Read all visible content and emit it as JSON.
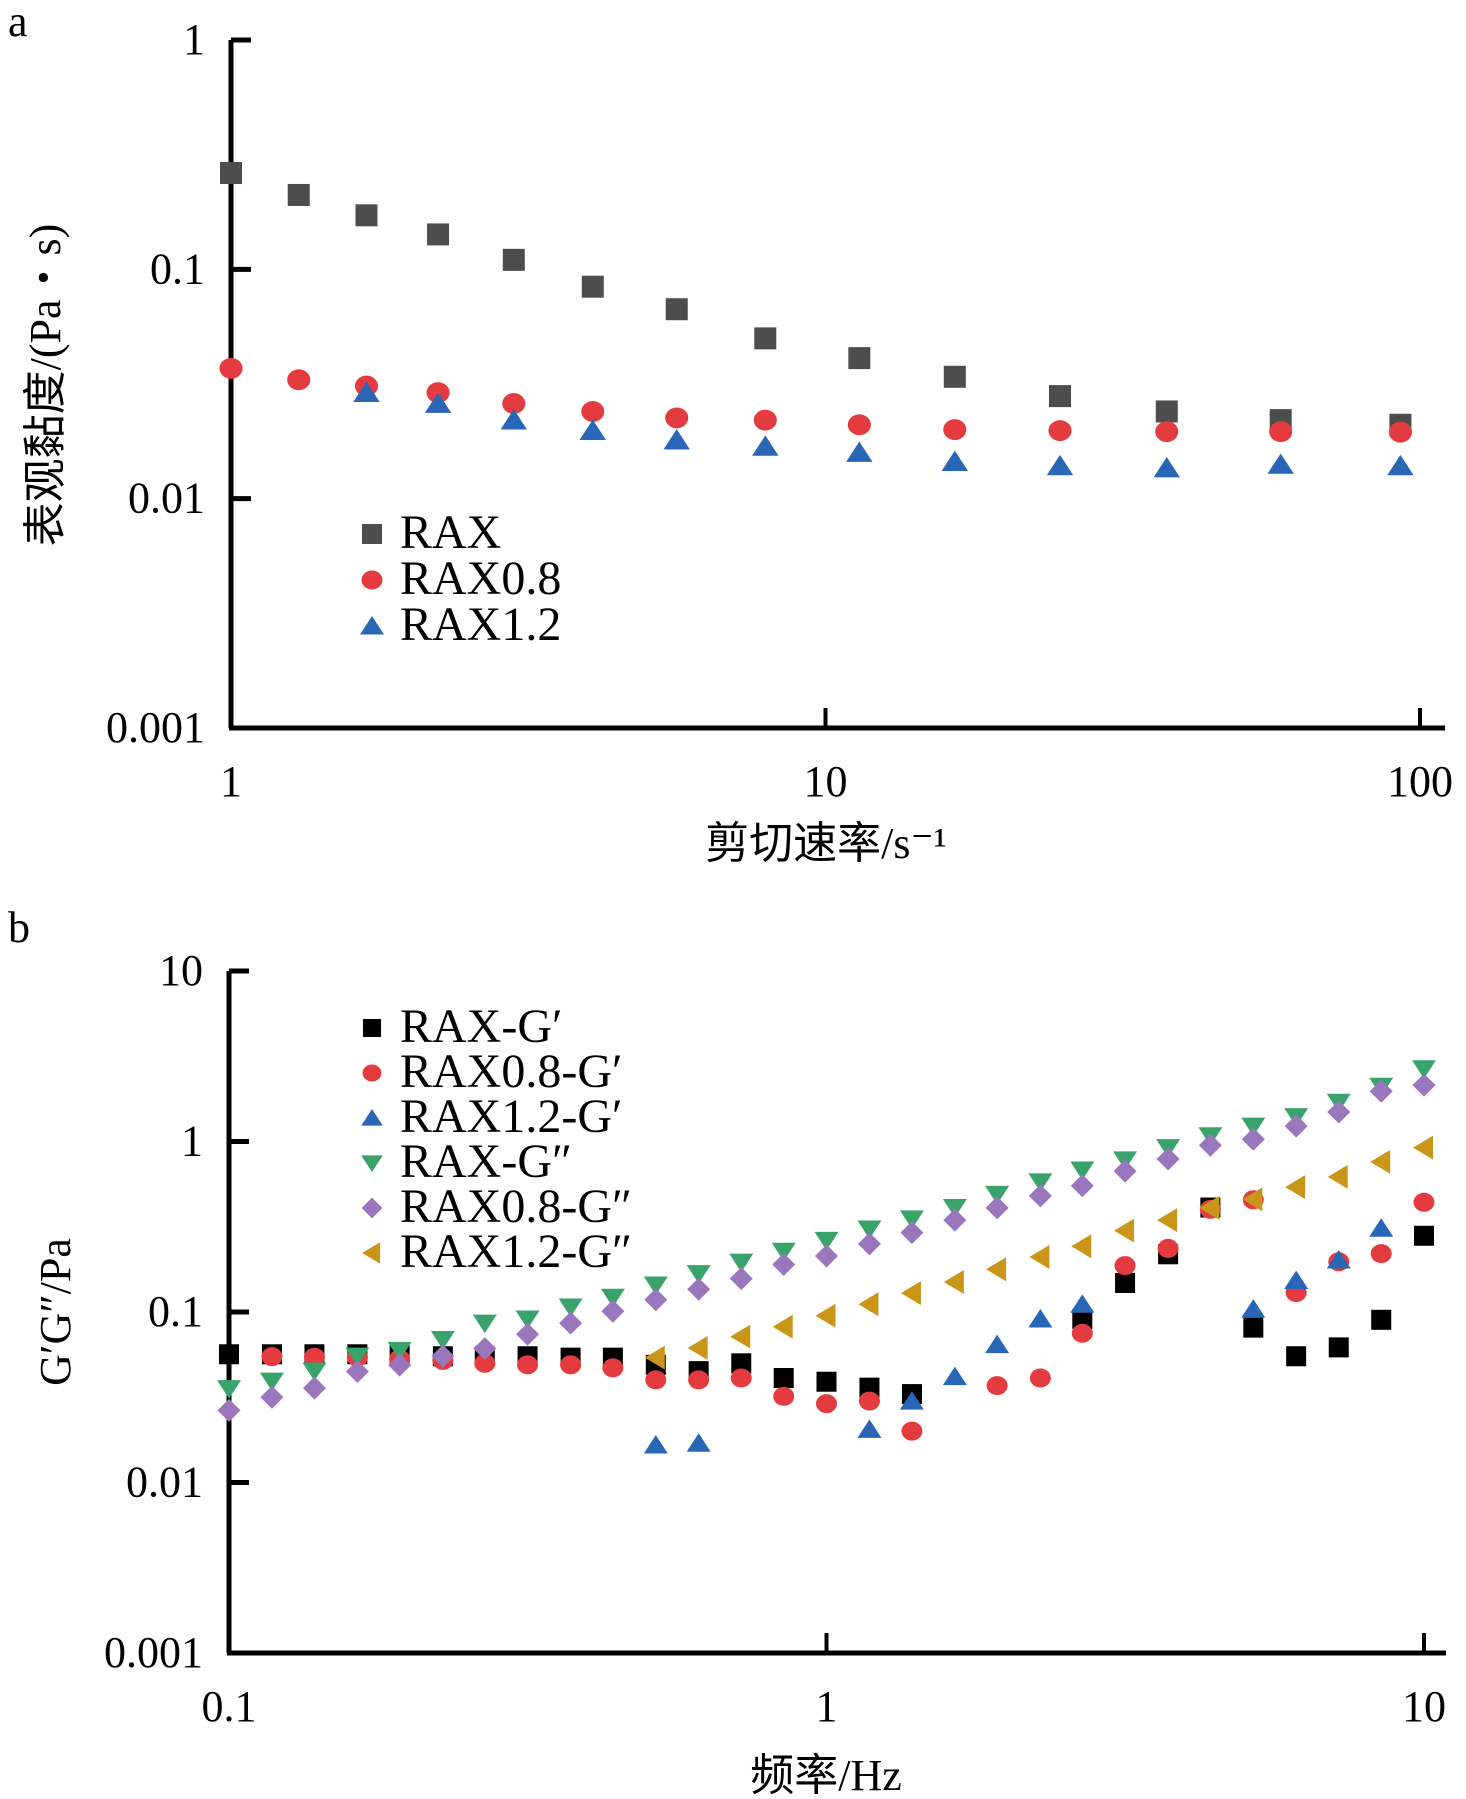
{
  "chart_data": [
    {
      "panel": "a",
      "type": "scatter",
      "title": "",
      "xlabel": "剪切速率/s⁻¹",
      "ylabel": "表观黏度/(Pa・s)",
      "xscale": "log",
      "yscale": "log",
      "xlim": [
        1,
        100
      ],
      "ylim": [
        0.001,
        1
      ],
      "xticks": [
        "1",
        "10",
        "100"
      ],
      "yticks": [
        "0.001",
        "0.01",
        "0.1",
        "1"
      ],
      "grid": false,
      "legend_position": "lower-left",
      "x": [
        1.0,
        1.3,
        1.69,
        2.23,
        2.99,
        4.06,
        5.62,
        7.92,
        11.4,
        16.5,
        24.8,
        37.5,
        58.3,
        92.7
      ],
      "series": [
        {
          "name": "RAX",
          "marker": "square",
          "color": "#4d4d4d",
          "values": [
            0.263,
            0.211,
            0.172,
            0.142,
            0.11,
            0.084,
            0.067,
            0.05,
            0.041,
            0.034,
            0.028,
            0.024,
            0.022,
            0.021
          ]
        },
        {
          "name": "RAX0.8",
          "marker": "circle",
          "color": "#e33b3f",
          "values": [
            0.037,
            0.033,
            0.031,
            0.029,
            0.026,
            0.024,
            0.0225,
            0.022,
            0.021,
            0.02,
            0.0198,
            0.0196,
            0.0196,
            0.0195
          ]
        },
        {
          "name": "RAX1.2",
          "marker": "triangle-up",
          "color": "#2a66b6",
          "values": [
            null,
            null,
            0.029,
            0.026,
            0.022,
            0.0198,
            0.018,
            0.0169,
            0.0159,
            0.0145,
            0.0139,
            0.0136,
            0.0141,
            0.0139
          ]
        }
      ]
    },
    {
      "panel": "b",
      "type": "scatter",
      "title": "",
      "xlabel": "频率/Hz",
      "ylabel": "G′G″/Pa",
      "xscale": "log",
      "yscale": "log",
      "xlim": [
        0.1,
        10
      ],
      "ylim": [
        0.001,
        10
      ],
      "xticks": [
        "0.1",
        "1",
        "10"
      ],
      "yticks": [
        "0.001",
        "0.01",
        "0.1",
        "1",
        "10"
      ],
      "grid": false,
      "legend_position": "top-left",
      "x": [
        0.1,
        0.118,
        0.139,
        0.164,
        0.193,
        0.228,
        0.268,
        0.316,
        0.373,
        0.439,
        0.518,
        0.611,
        0.72,
        0.848,
        1.0,
        1.18,
        1.39,
        1.64,
        1.93,
        2.28,
        2.68,
        3.16,
        3.73,
        4.39,
        5.18,
        6.11,
        7.2,
        8.48,
        10.0
      ],
      "series": [
        {
          "name": "RAX-G′",
          "marker": "square",
          "color": "#000000",
          "values": [
            0.0565,
            0.0565,
            0.0565,
            0.0565,
            0.056,
            0.055,
            0.055,
            0.055,
            0.054,
            0.054,
            0.049,
            0.045,
            0.05,
            0.041,
            0.039,
            0.036,
            0.033,
            null,
            null,
            null,
            0.091,
            0.148,
            0.218,
            0.41,
            0.081,
            0.055,
            0.062,
            0.09,
            0.28
          ]
        },
        {
          "name": "RAX0.8-G′",
          "marker": "circle",
          "color": "#e33b3f",
          "values": [
            null,
            0.0547,
            0.0543,
            0.0543,
            0.053,
            0.052,
            0.05,
            0.049,
            0.049,
            0.047,
            0.04,
            0.04,
            0.041,
            0.032,
            0.029,
            0.03,
            0.02,
            null,
            0.037,
            0.041,
            0.075,
            0.187,
            0.236,
            0.4,
            0.455,
            0.13,
            0.197,
            0.22,
            0.44
          ]
        },
        {
          "name": "RAX1.2-G′",
          "marker": "triangle-up",
          "color": "#2a66b6",
          "values": [
            null,
            null,
            null,
            null,
            null,
            null,
            null,
            null,
            null,
            null,
            0.0166,
            0.017,
            null,
            null,
            null,
            0.0205,
            0.03,
            0.0418,
            0.0644,
            0.091,
            0.111,
            null,
            null,
            null,
            0.104,
            0.153,
            0.202,
            0.31,
            null
          ]
        },
        {
          "name": "RAX-G″",
          "marker": "triangle-down",
          "color": "#3aa36b",
          "values": [
            0.0355,
            0.0393,
            0.0451,
            0.0551,
            0.0596,
            0.069,
            0.086,
            0.091,
            0.107,
            0.122,
            0.144,
            0.168,
            0.196,
            0.227,
            0.263,
            0.307,
            0.352,
            0.41,
            0.49,
            0.58,
            0.68,
            0.78,
            0.92,
            1.08,
            1.23,
            1.4,
            1.7,
            2.11,
            2.67
          ]
        },
        {
          "name": "RAX0.8-G″",
          "marker": "diamond",
          "color": "#9a77bd",
          "values": [
            0.0265,
            0.0316,
            0.0358,
            0.0448,
            0.0488,
            0.0551,
            0.061,
            0.074,
            0.086,
            0.101,
            0.118,
            0.136,
            0.157,
            0.19,
            0.213,
            0.251,
            0.292,
            0.346,
            0.408,
            0.48,
            0.55,
            0.67,
            0.79,
            0.95,
            1.03,
            1.23,
            1.49,
            1.97,
            2.14
          ]
        },
        {
          "name": "RAX1.2-G″",
          "marker": "triangle-left",
          "color": "#c9961a",
          "values": [
            null,
            null,
            null,
            null,
            null,
            null,
            null,
            null,
            null,
            null,
            0.054,
            0.0615,
            0.0717,
            0.082,
            0.095,
            0.111,
            0.129,
            0.15,
            0.178,
            0.21,
            0.243,
            0.3,
            0.346,
            0.408,
            0.458,
            0.54,
            0.62,
            0.76,
            0.92
          ]
        }
      ]
    }
  ]
}
